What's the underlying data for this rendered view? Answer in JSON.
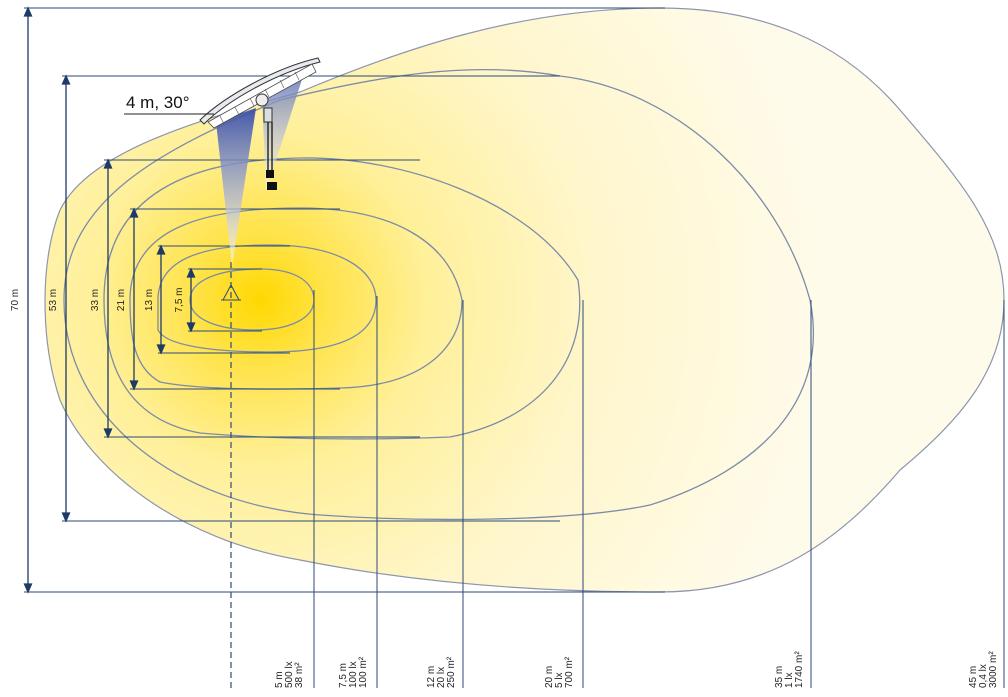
{
  "mounting": {
    "label": "4 m, 30°"
  },
  "heights": [
    {
      "label": "70 m"
    },
    {
      "label": "53 m"
    },
    {
      "label": "33 m"
    },
    {
      "label": "21 m"
    },
    {
      "label": "13 m"
    },
    {
      "label": "7,5 m"
    }
  ],
  "contours": [
    {
      "distance": "5 m",
      "lux": "500 lx",
      "area": "38 m²"
    },
    {
      "distance": "7,5 m",
      "lux": "100 lx",
      "area": "100 m²"
    },
    {
      "distance": "12 m",
      "lux": "20 lx",
      "area": "250 m²"
    },
    {
      "distance": "20 m",
      "lux": "5 lx",
      "area": "700 m²"
    },
    {
      "distance": "35 m",
      "lux": "1 lx",
      "area": "1740 m²"
    },
    {
      "distance": "45 m",
      "lux": "0,4 lx",
      "area": "3000 m²"
    }
  ],
  "colors": {
    "line": "#2b4a7a",
    "contour": "#7c8ca8",
    "glow": "#ffd800",
    "fill": "#fff5c8",
    "beam": "#5b6fb8"
  }
}
